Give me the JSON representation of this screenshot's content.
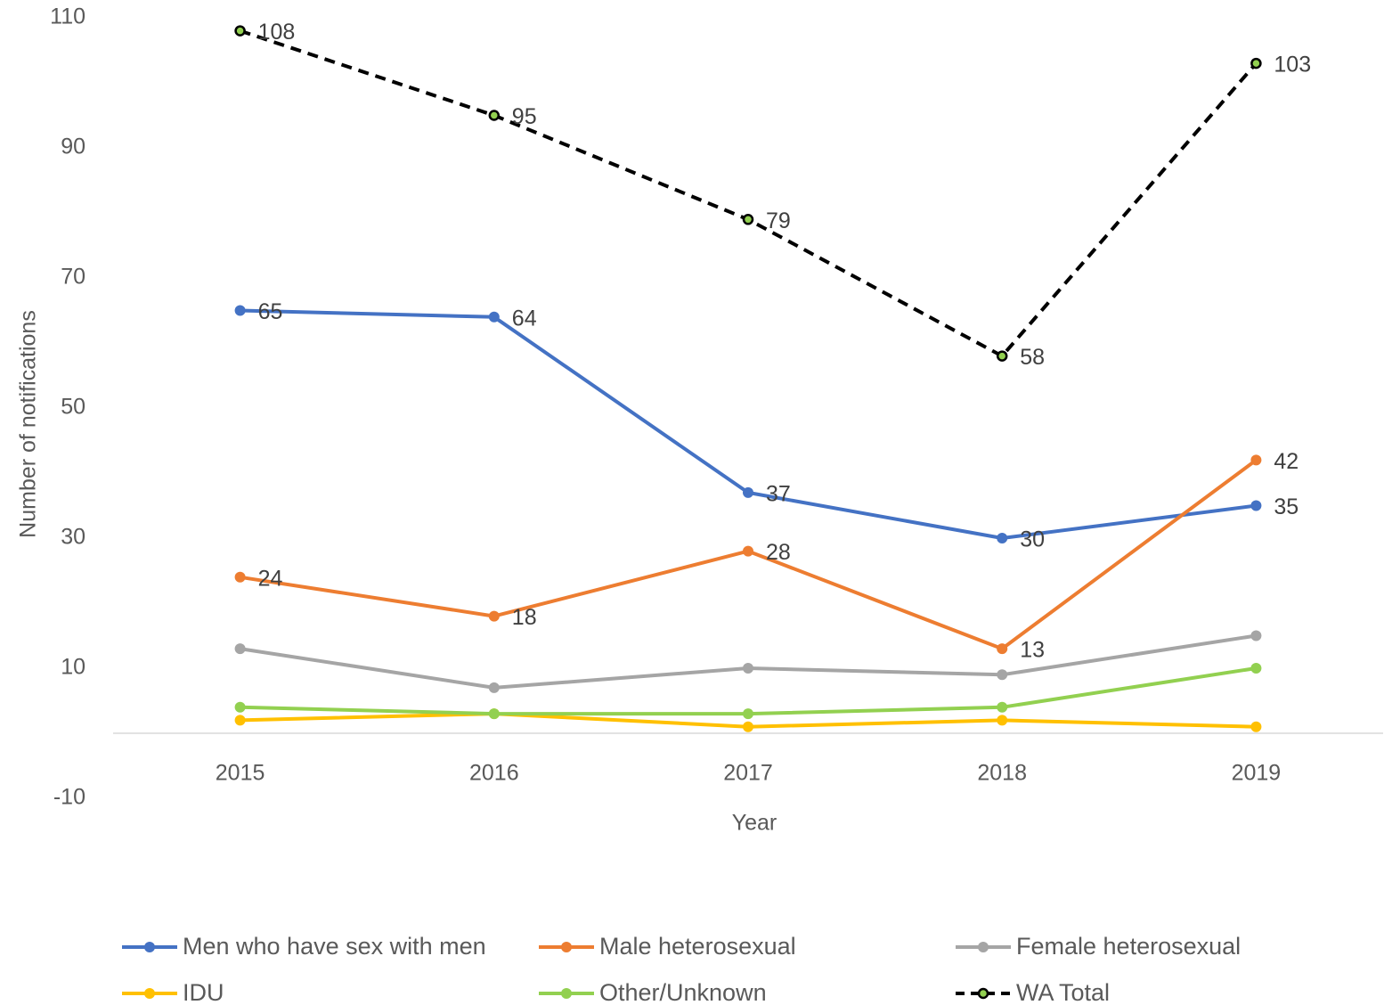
{
  "chart_data": {
    "type": "line",
    "x_label": "Year",
    "y_label": "Number of notifications",
    "categories": [
      "2015",
      "2016",
      "2017",
      "2018",
      "2019"
    ],
    "ylim": [
      -10,
      110
    ],
    "yticks": [
      -10,
      10,
      30,
      50,
      70,
      90,
      110
    ],
    "grid": false,
    "legend": "bottom",
    "series": [
      {
        "name": "Men who have sex with men",
        "color": "#4472c4",
        "values": [
          65,
          64,
          37,
          30,
          35
        ],
        "data_labels": true
      },
      {
        "name": "Male heterosexual",
        "color": "#ed7d31",
        "values": [
          24,
          18,
          28,
          13,
          42
        ],
        "data_labels": true
      },
      {
        "name": "Female heterosexual",
        "color": "#a5a5a5",
        "values": [
          13,
          7,
          10,
          9,
          15
        ],
        "data_labels": false
      },
      {
        "name": "IDU",
        "color": "#ffc000",
        "values": [
          2,
          3,
          1,
          2,
          1
        ],
        "data_labels": false
      },
      {
        "name": "Other/Unknown",
        "color": "#92d050",
        "values": [
          4,
          3,
          3,
          4,
          10
        ],
        "data_labels": false
      },
      {
        "name": "WA Total",
        "color": "#000000",
        "marker_color": "#92d050",
        "style": "dashed",
        "values": [
          108,
          95,
          79,
          58,
          103
        ],
        "data_labels": true
      }
    ]
  }
}
